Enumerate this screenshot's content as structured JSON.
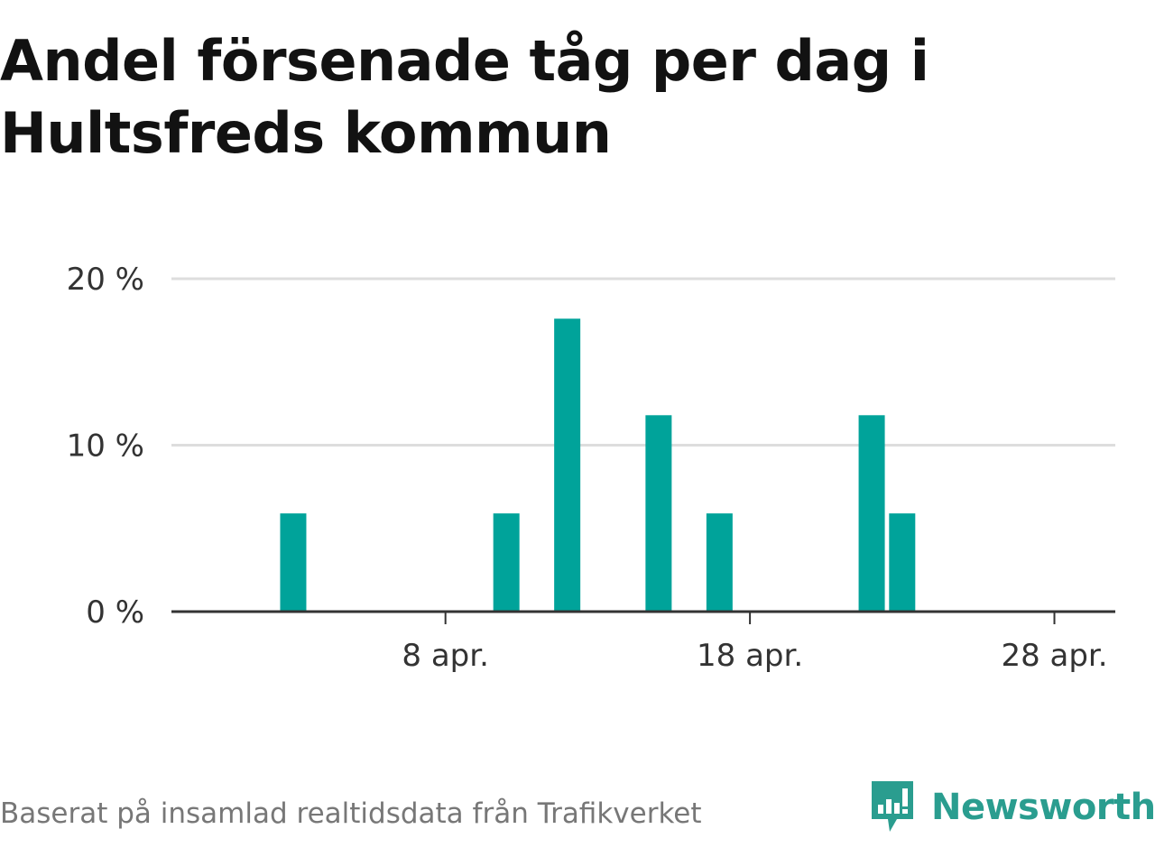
{
  "title_line1": "Andel försenade tåg per dag i",
  "title_line2": "Hultsfreds kommun",
  "source": "Baserat på insamlad realtidsdata från Trafikverket",
  "brand": "Newsworthy",
  "colors": {
    "bar": "#00a39a",
    "grid": "#dddddd",
    "axis": "#333333",
    "brand": "#2a9d8f"
  },
  "chart_data": {
    "type": "bar",
    "xlim": [
      "2024-03-30",
      "2024-04-30"
    ],
    "ylim": [
      0,
      20
    ],
    "yticks": [
      {
        "value": 0,
        "label": "0 %"
      },
      {
        "value": 10,
        "label": "10 %"
      },
      {
        "value": 20,
        "label": "20 %"
      }
    ],
    "xticks": [
      {
        "value": "2024-04-08",
        "label": "8 apr."
      },
      {
        "value": "2024-04-18",
        "label": "18 apr."
      },
      {
        "value": "2024-04-28",
        "label": "28 apr."
      }
    ],
    "grid": true,
    "points": [
      {
        "x": "2024-04-03",
        "y": 5.9
      },
      {
        "x": "2024-04-10",
        "y": 5.9
      },
      {
        "x": "2024-04-12",
        "y": 17.6
      },
      {
        "x": "2024-04-15",
        "y": 11.8
      },
      {
        "x": "2024-04-17",
        "y": 5.9
      },
      {
        "x": "2024-04-22",
        "y": 11.8
      },
      {
        "x": "2024-04-23",
        "y": 5.9
      }
    ]
  }
}
